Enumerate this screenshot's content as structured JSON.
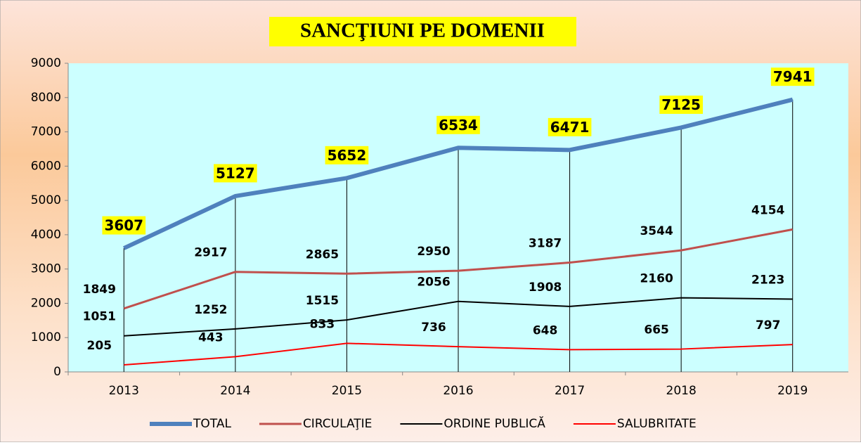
{
  "chart_data": {
    "type": "line",
    "title": "SANCŢIUNI PE DOMENII",
    "categories": [
      "2013",
      "2014",
      "2015",
      "2016",
      "2017",
      "2018",
      "2019"
    ],
    "series": [
      {
        "name": "TOTAL",
        "color": "#4f81bd",
        "values": [
          3607,
          5127,
          5652,
          6534,
          6471,
          7125,
          7941
        ]
      },
      {
        "name": "CIRCULAŢIE",
        "color": "#c0504d",
        "values": [
          1849,
          2917,
          2865,
          2950,
          3187,
          3544,
          4154
        ]
      },
      {
        "name": "ORDINE PUBLICĂ",
        "color": "#000000",
        "values": [
          1051,
          1252,
          1515,
          2056,
          1908,
          2160,
          2123
        ]
      },
      {
        "name": "SALUBRITATE",
        "color": "#ff0000",
        "values": [
          205,
          443,
          833,
          736,
          648,
          665,
          797
        ]
      }
    ],
    "ylim": [
      0,
      9000
    ],
    "yticks": [
      0,
      1000,
      2000,
      3000,
      4000,
      5000,
      6000,
      7000,
      8000,
      9000
    ],
    "grid": false,
    "legend": "bottom"
  }
}
